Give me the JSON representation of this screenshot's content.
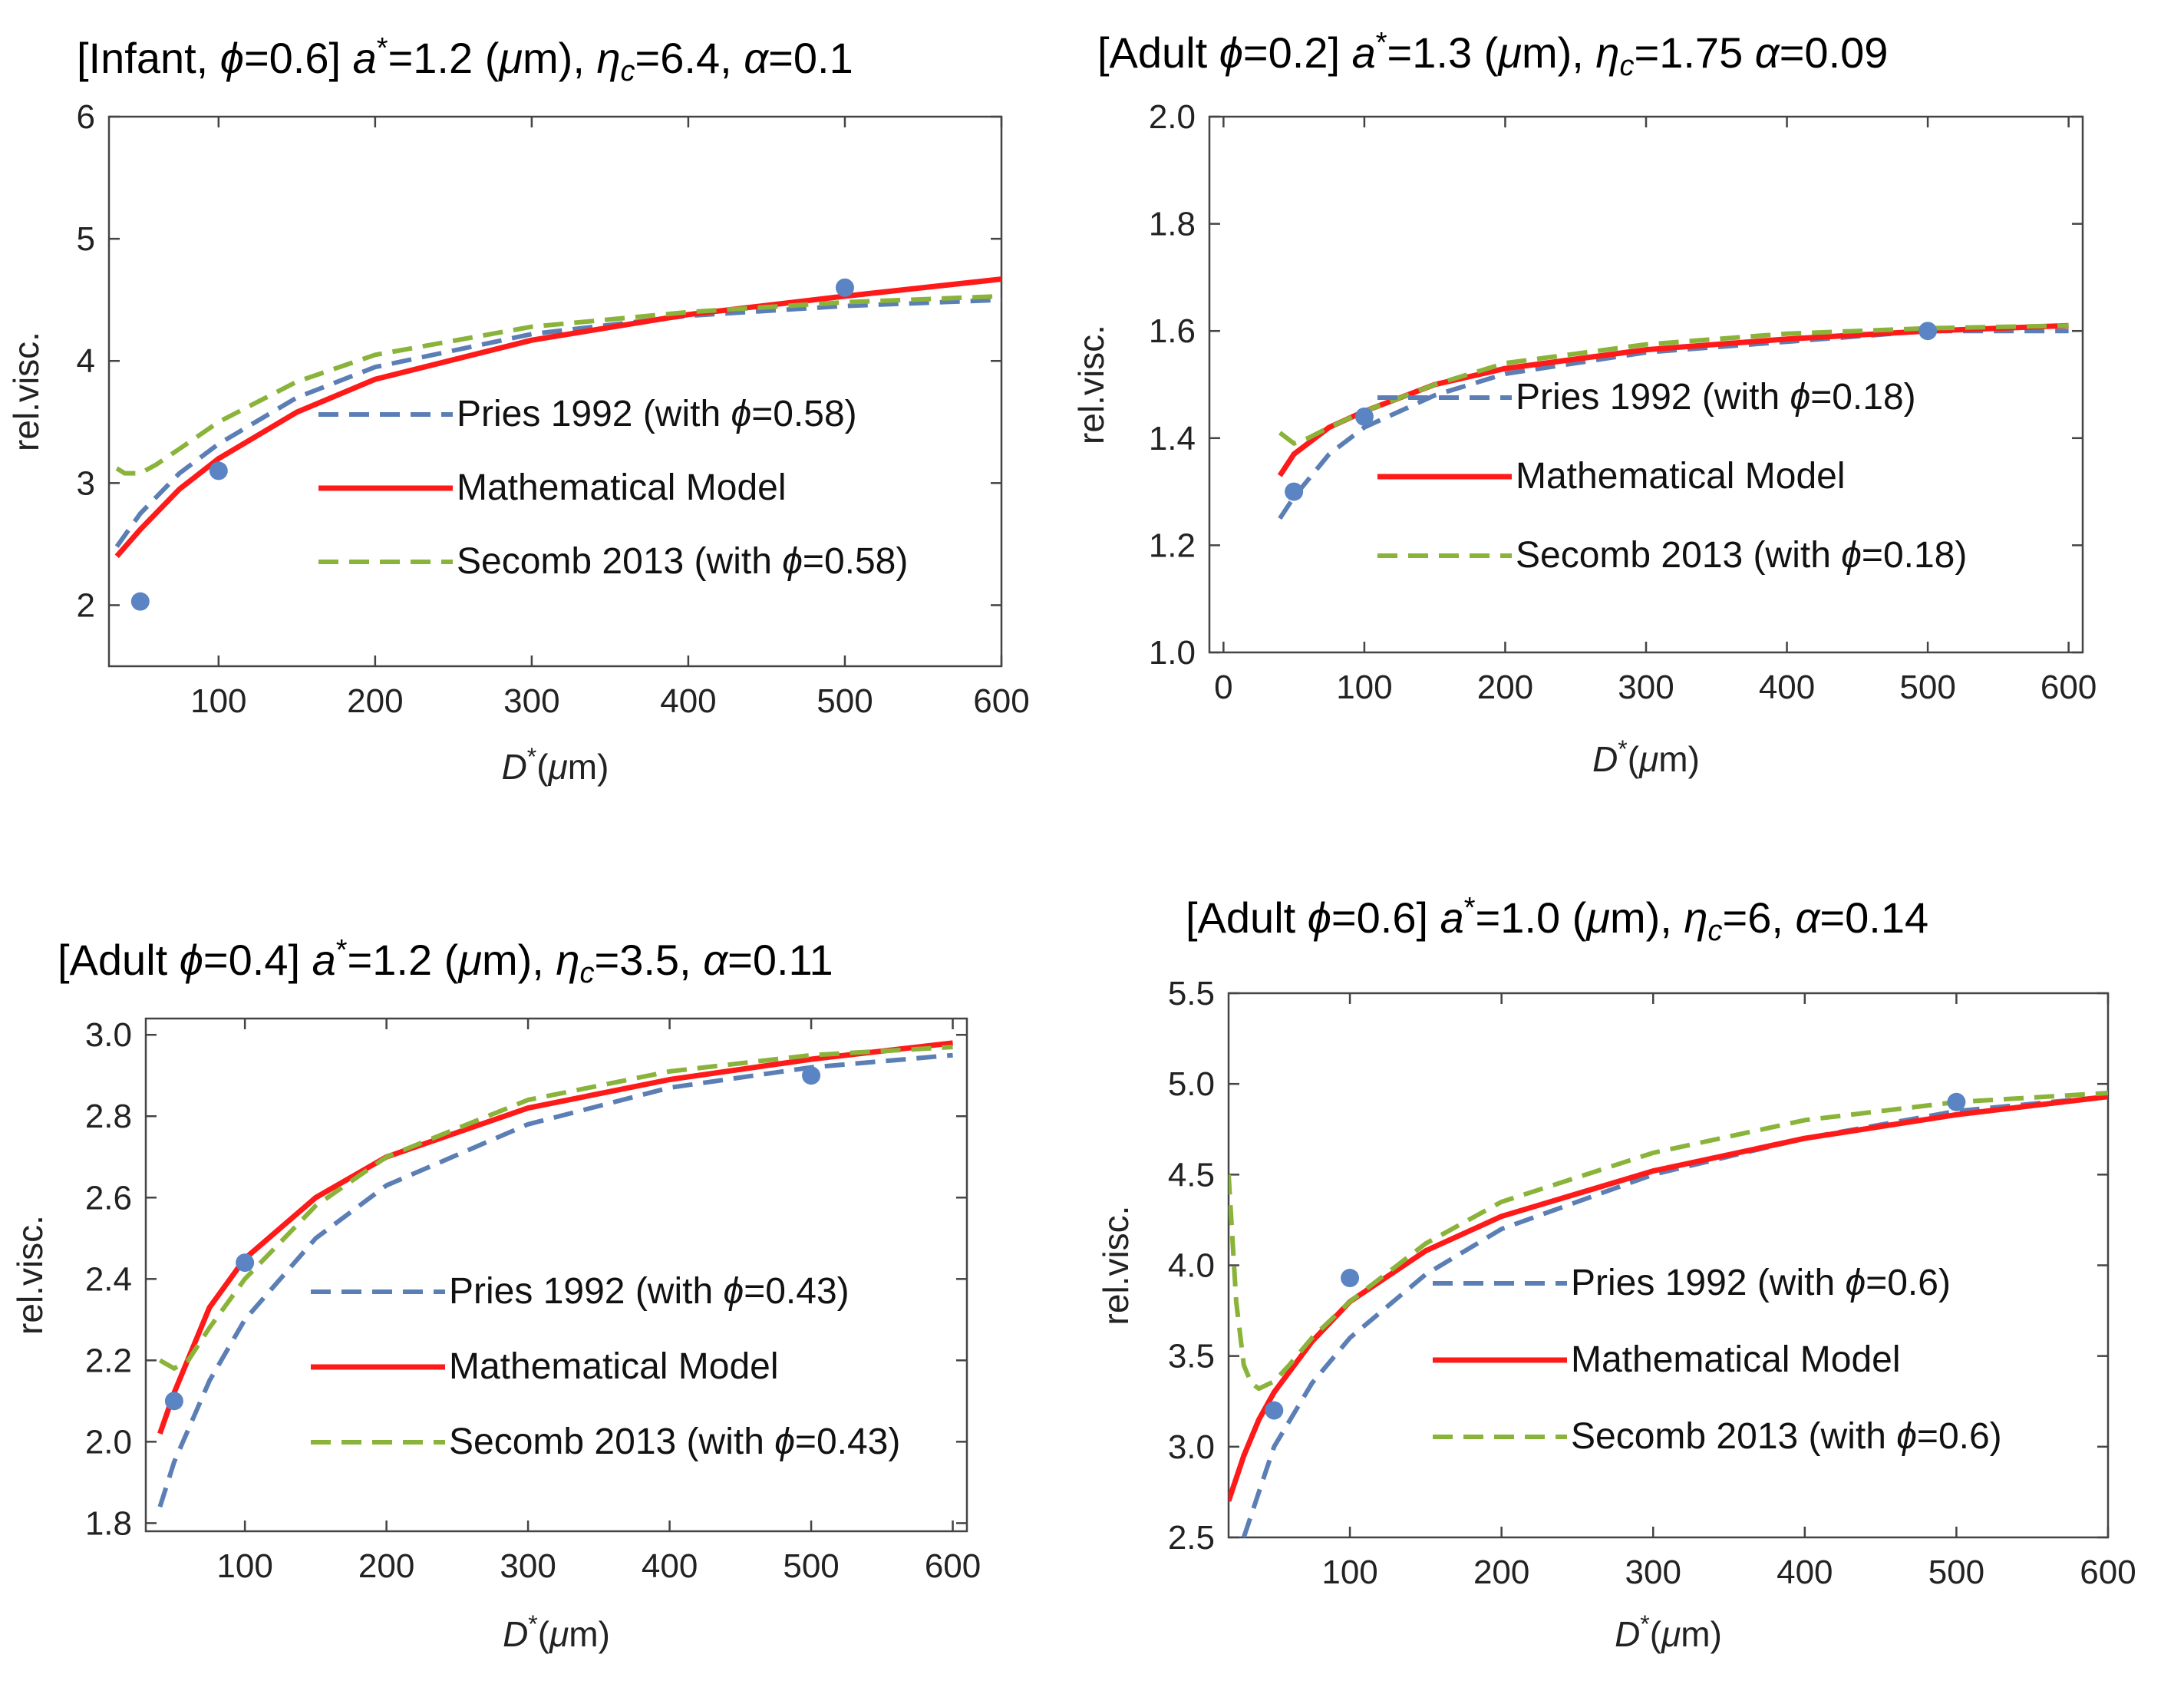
{
  "colors": {
    "pries": "#5b7fb5",
    "model": "#ff1a1a",
    "secomb": "#8ab33a",
    "points": "#5b84c4"
  },
  "chart_data": [
    {
      "type": "line",
      "title_parts": {
        "prefix": "[Infant, ",
        "phi_sym": "ϕ",
        "phi_val": "=0.6] ",
        "a_sym": "a",
        "a_sup": "*",
        "a_val": "=1.2 (",
        "mu": "μ",
        "a_unit": "m),   ",
        "eta_sym": "η",
        "eta_sub": "c",
        "eta_val": "=6.4, ",
        "alpha_sym": "α",
        "alpha_val": "=0.1"
      },
      "xlabel": {
        "sym": "D",
        "sup": "*",
        "paren": "(",
        "mu": "μ",
        "unit": "m)"
      },
      "ylabel": "rel.visc.",
      "xlim": [
        30,
        600
      ],
      "ylim": [
        1.5,
        6
      ],
      "xticks": [
        100,
        200,
        300,
        400,
        500,
        600
      ],
      "xtick_labels": [
        "100",
        "200",
        "300",
        "400",
        "500",
        "600"
      ],
      "yticks": [
        2,
        3,
        4,
        5,
        6
      ],
      "ytick_labels": [
        "2",
        "3",
        "4",
        "5",
        "6"
      ],
      "legend": [
        {
          "key": "pries",
          "pre": "Pries 1992  (with ",
          "phi": "ϕ",
          "post": "=0.58)"
        },
        {
          "key": "model",
          "pre": "Mathematical Model",
          "phi": "",
          "post": ""
        },
        {
          "key": "secomb",
          "pre": "Secomb 2013 (with ",
          "phi": "ϕ",
          "post": "=0.58)"
        }
      ],
      "series": [
        {
          "name": "Pries 1992",
          "style": "pries",
          "x": [
            35,
            50,
            75,
            100,
            150,
            200,
            300,
            400,
            500,
            600
          ],
          "y": [
            2.48,
            2.75,
            3.08,
            3.32,
            3.7,
            3.95,
            4.22,
            4.37,
            4.45,
            4.5
          ]
        },
        {
          "name": "Mathematical Model",
          "style": "model",
          "x": [
            35,
            50,
            75,
            100,
            150,
            200,
            300,
            400,
            500,
            600
          ],
          "y": [
            2.4,
            2.62,
            2.95,
            3.2,
            3.58,
            3.85,
            4.17,
            4.38,
            4.53,
            4.67
          ]
        },
        {
          "name": "Secomb 2013",
          "style": "secomb",
          "x": [
            35,
            40,
            50,
            60,
            75,
            100,
            150,
            200,
            300,
            400,
            500,
            600
          ],
          "y": [
            3.12,
            3.08,
            3.08,
            3.15,
            3.28,
            3.5,
            3.83,
            4.05,
            4.28,
            4.4,
            4.48,
            4.53
          ]
        }
      ],
      "points": {
        "x": [
          50,
          100,
          500
        ],
        "y": [
          2.03,
          3.1,
          4.6
        ]
      }
    },
    {
      "type": "line",
      "title_parts": {
        "prefix": "[Adult ",
        "phi_sym": "ϕ",
        "phi_val": "=0.2] ",
        "a_sym": "a",
        "a_sup": "*",
        "a_val": "=1.3 (",
        "mu": "μ",
        "a_unit": "m),   ",
        "eta_sym": "η",
        "eta_sub": "c",
        "eta_val": "=1.75  ",
        "alpha_sym": "α",
        "alpha_val": "=0.09"
      },
      "xlabel": {
        "sym": "D",
        "sup": "*",
        "paren": "(",
        "mu": "μ",
        "unit": "m)"
      },
      "ylabel": "rel.visc.",
      "xlim": [
        -10,
        610
      ],
      "ylim": [
        1.0,
        2.0
      ],
      "xticks": [
        0,
        100,
        200,
        300,
        400,
        500,
        600
      ],
      "xtick_labels": [
        "0",
        "100",
        "200",
        "300",
        "400",
        "500",
        "600"
      ],
      "yticks": [
        1.0,
        1.2,
        1.4,
        1.6,
        1.8,
        2.0
      ],
      "ytick_labels": [
        "1.0",
        "1.2",
        "1.4",
        "1.6",
        "1.8",
        "2.0"
      ],
      "legend": [
        {
          "key": "pries",
          "pre": "Pries 1992  (with ",
          "phi": "ϕ",
          "post": "=0.18)"
        },
        {
          "key": "model",
          "pre": "Mathematical Model",
          "phi": "",
          "post": ""
        },
        {
          "key": "secomb",
          "pre": "Secomb 2013 (with ",
          "phi": "ϕ",
          "post": "=0.18)"
        }
      ],
      "series": [
        {
          "name": "Pries 1992",
          "style": "pries",
          "x": [
            40,
            50,
            75,
            100,
            150,
            200,
            300,
            400,
            500,
            600
          ],
          "y": [
            1.25,
            1.29,
            1.37,
            1.42,
            1.48,
            1.52,
            1.56,
            1.58,
            1.6,
            1.6
          ]
        },
        {
          "name": "Mathematical Model",
          "style": "model",
          "x": [
            40,
            50,
            75,
            100,
            150,
            200,
            300,
            400,
            500,
            600
          ],
          "y": [
            1.33,
            1.37,
            1.42,
            1.45,
            1.5,
            1.53,
            1.565,
            1.585,
            1.6,
            1.61
          ]
        },
        {
          "name": "Secomb 2013",
          "style": "secomb",
          "x": [
            40,
            50,
            60,
            75,
            100,
            150,
            200,
            300,
            400,
            500,
            600
          ],
          "y": [
            1.41,
            1.39,
            1.4,
            1.42,
            1.45,
            1.5,
            1.54,
            1.575,
            1.595,
            1.605,
            1.61
          ]
        }
      ],
      "points": {
        "x": [
          50,
          100,
          500
        ],
        "y": [
          1.3,
          1.44,
          1.6
        ]
      }
    },
    {
      "type": "line",
      "title_parts": {
        "prefix": "[Adult ",
        "phi_sym": "ϕ",
        "phi_val": "=0.4] ",
        "a_sym": "a",
        "a_sup": "*",
        "a_val": "=1.2 (",
        "mu": "μ",
        "a_unit": "m),   ",
        "eta_sym": "η",
        "eta_sub": "c",
        "eta_val": "=3.5,  ",
        "alpha_sym": "α",
        "alpha_val": "=0.11"
      },
      "xlabel": {
        "sym": "D",
        "sup": "*",
        "paren": "(",
        "mu": "μ",
        "unit": "m)"
      },
      "ylabel": "rel.visc.",
      "xlim": [
        30,
        610
      ],
      "ylim": [
        1.78,
        3.04
      ],
      "xticks": [
        100,
        200,
        300,
        400,
        500,
        600
      ],
      "xtick_labels": [
        "100",
        "200",
        "300",
        "400",
        "500",
        "600"
      ],
      "yticks": [
        1.8,
        2.0,
        2.2,
        2.4,
        2.6,
        2.8,
        3.0
      ],
      "ytick_labels": [
        "1.8",
        "2.0",
        "2.2",
        "2.4",
        "2.6",
        "2.8",
        "3.0"
      ],
      "legend": [
        {
          "key": "pries",
          "pre": "Pries 1992  (with ",
          "phi": "ϕ",
          "post": "=0.43)"
        },
        {
          "key": "model",
          "pre": "Mathematical Model",
          "phi": "",
          "post": ""
        },
        {
          "key": "secomb",
          "pre": "Secomb 2013 (with ",
          "phi": "ϕ",
          "post": "=0.43)"
        }
      ],
      "series": [
        {
          "name": "Pries 1992",
          "style": "pries",
          "x": [
            40,
            50,
            75,
            100,
            150,
            200,
            300,
            400,
            500,
            600
          ],
          "y": [
            1.84,
            1.95,
            2.15,
            2.3,
            2.5,
            2.63,
            2.78,
            2.87,
            2.92,
            2.95
          ]
        },
        {
          "name": "Mathematical Model",
          "style": "model",
          "x": [
            40,
            50,
            75,
            100,
            150,
            200,
            300,
            400,
            500,
            600
          ],
          "y": [
            2.02,
            2.12,
            2.33,
            2.45,
            2.6,
            2.7,
            2.82,
            2.89,
            2.94,
            2.98
          ]
        },
        {
          "name": "Secomb 2013",
          "style": "secomb",
          "x": [
            40,
            50,
            60,
            75,
            100,
            150,
            200,
            300,
            400,
            500,
            600
          ],
          "y": [
            2.2,
            2.18,
            2.2,
            2.28,
            2.4,
            2.58,
            2.7,
            2.84,
            2.91,
            2.95,
            2.97
          ]
        }
      ],
      "points": {
        "x": [
          50,
          100,
          500
        ],
        "y": [
          2.1,
          2.44,
          2.9
        ]
      }
    },
    {
      "type": "line",
      "title_parts": {
        "prefix": "[Adult ",
        "phi_sym": "ϕ",
        "phi_val": "=0.6] ",
        "a_sym": "a",
        "a_sup": "*",
        "a_val": "=1.0 (",
        "mu": "μ",
        "a_unit": "m),   ",
        "eta_sym": "η",
        "eta_sub": "c",
        "eta_val": "=6,  ",
        "alpha_sym": "α",
        "alpha_val": "=0.14"
      },
      "xlabel": {
        "sym": "D",
        "sup": "*",
        "paren": "(",
        "mu": "μ",
        "unit": "m)"
      },
      "ylabel": "rel.visc.",
      "xlim": [
        20,
        600
      ],
      "ylim": [
        2.5,
        5.5
      ],
      "xticks": [
        100,
        200,
        300,
        400,
        500,
        600
      ],
      "xtick_labels": [
        "100",
        "200",
        "300",
        "400",
        "500",
        "600"
      ],
      "yticks": [
        2.5,
        3.0,
        3.5,
        4.0,
        4.5,
        5.0,
        5.5
      ],
      "ytick_labels": [
        "2.5",
        "3.0",
        "3.5",
        "4.0",
        "4.5",
        "5.0",
        "5.5"
      ],
      "legend": [
        {
          "key": "pries",
          "pre": "Pries 1992  (with ",
          "phi": "ϕ",
          "post": "=0.6)"
        },
        {
          "key": "model",
          "pre": "Mathematical Model",
          "phi": "",
          "post": ""
        },
        {
          "key": "secomb",
          "pre": "Secomb 2013 (with ",
          "phi": "ϕ",
          "post": "=0.6)"
        }
      ],
      "series": [
        {
          "name": "Pries 1992",
          "style": "pries",
          "x": [
            30,
            40,
            50,
            75,
            100,
            150,
            200,
            300,
            400,
            500,
            600
          ],
          "y": [
            2.5,
            2.75,
            3.0,
            3.35,
            3.6,
            3.95,
            4.2,
            4.5,
            4.7,
            4.85,
            4.93
          ]
        },
        {
          "name": "Mathematical Model",
          "style": "model",
          "x": [
            20,
            30,
            40,
            50,
            75,
            100,
            150,
            200,
            300,
            400,
            500,
            600
          ],
          "y": [
            2.7,
            2.95,
            3.15,
            3.3,
            3.58,
            3.8,
            4.08,
            4.27,
            4.52,
            4.7,
            4.83,
            4.93
          ]
        },
        {
          "name": "Secomb 2013",
          "style": "secomb",
          "x": [
            20,
            25,
            30,
            35,
            40,
            50,
            60,
            75,
            100,
            150,
            200,
            300,
            400,
            500,
            600
          ],
          "y": [
            4.5,
            3.8,
            3.45,
            3.35,
            3.32,
            3.36,
            3.45,
            3.6,
            3.8,
            4.12,
            4.35,
            4.62,
            4.8,
            4.9,
            4.95
          ]
        }
      ],
      "points": {
        "x": [
          50,
          100,
          500
        ],
        "y": [
          3.2,
          3.93,
          4.9
        ]
      }
    }
  ]
}
